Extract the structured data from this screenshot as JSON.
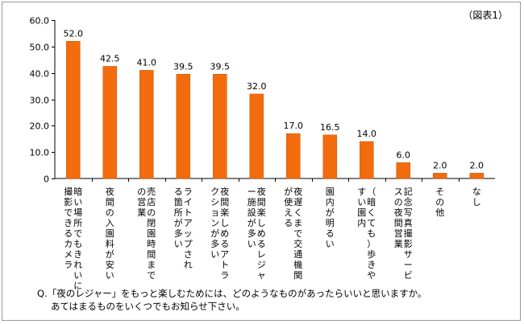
{
  "figure_label": "（図表1）",
  "question": {
    "line1": "Q.「夜のレジャー」をもっと楽しむためには、どのようなものがあったらいいと思いますか。",
    "line2": "あてはまるものをいくつでもお知らせ下さい。"
  },
  "colors": {
    "bar": "#f26c0d",
    "bar_edge": "#c85400",
    "axis": "#000000"
  },
  "chart_data": {
    "type": "bar",
    "title": "",
    "xlabel": "",
    "ylabel": "",
    "ylim": [
      0,
      60
    ],
    "yticks": [
      0,
      10,
      20,
      30,
      40,
      50,
      60
    ],
    "ytick_labels": [
      "0",
      "10.0",
      "20.0",
      "30.0",
      "40.0",
      "50.0",
      "60.0"
    ],
    "grid": false,
    "categories": [
      {
        "columns": [
          "暗い場所でもきれいに",
          "撮影できるカメラ"
        ]
      },
      {
        "columns": [
          "夜間の入園料が安い"
        ]
      },
      {
        "columns": [
          "売店の閉園時間まで",
          "の営業"
        ]
      },
      {
        "columns": [
          "ライトアップされ",
          "る箇所が多い"
        ]
      },
      {
        "columns": [
          "夜間楽しめるアトラ",
          "クションが多い"
        ]
      },
      {
        "columns": [
          "夜間楽しめるレジャ",
          "ー施設が多い"
        ]
      },
      {
        "columns": [
          "夜遅くまで交通機関",
          "が使える"
        ]
      },
      {
        "columns": [
          "園内が明るい"
        ]
      },
      {
        "columns": [
          "（暗くても）歩きや",
          "すい園内"
        ]
      },
      {
        "columns": [
          "記念写真撮影サービ",
          "スの夜間営業"
        ]
      },
      {
        "columns": [
          "その他"
        ]
      },
      {
        "columns": [
          "なし"
        ]
      }
    ],
    "values": [
      52.0,
      42.5,
      41.0,
      39.5,
      39.5,
      32.0,
      17.0,
      16.5,
      14.0,
      6.0,
      2.0,
      2.0
    ],
    "value_labels": [
      "52.0",
      "42.5",
      "41.0",
      "39.5",
      "39.5",
      "32.0",
      "17.0",
      "16.5",
      "14.0",
      "6.0",
      "2.0",
      "2.0"
    ]
  }
}
